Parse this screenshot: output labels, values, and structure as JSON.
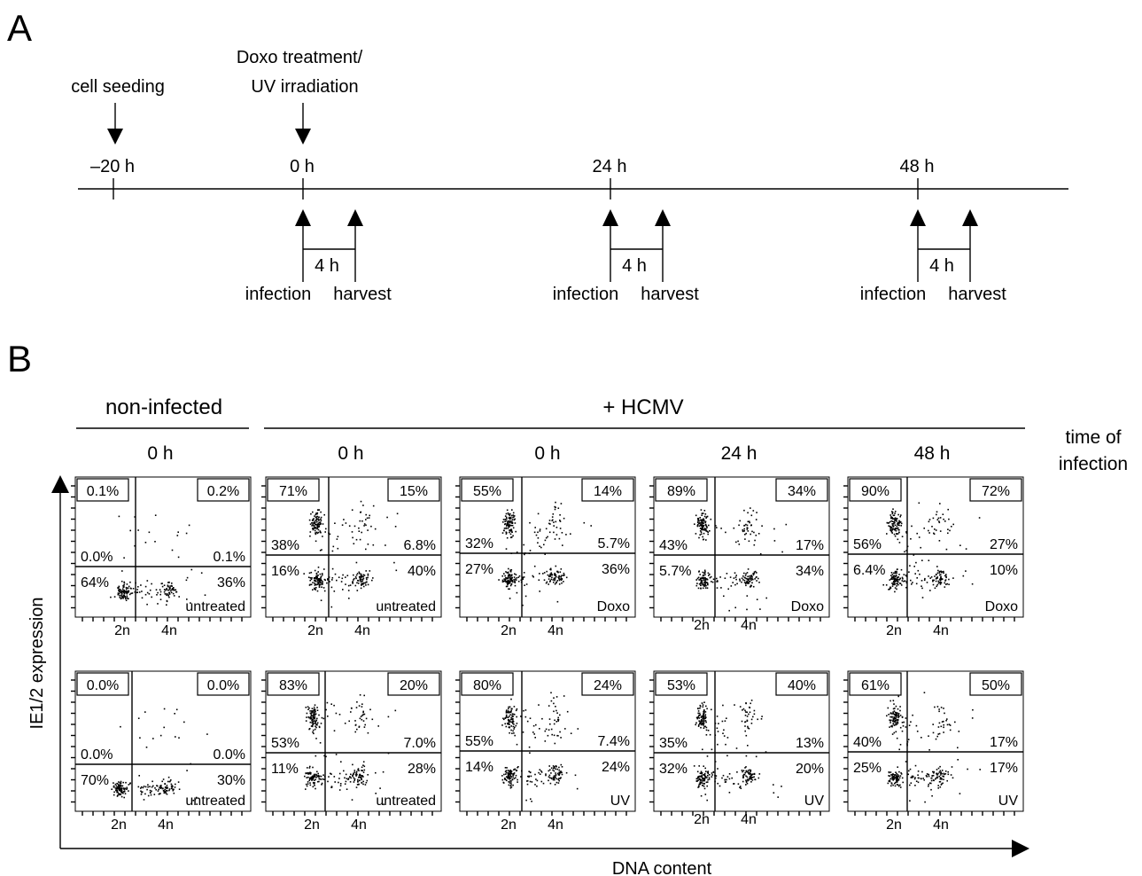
{
  "panel_a": {
    "letter": "A",
    "events_top": [
      {
        "label": "cell seeding"
      },
      {
        "label1": "Doxo treatment/",
        "label2": "UV irradiation"
      }
    ],
    "time_labels": [
      "–20 h",
      "0 h",
      "24 h",
      "48 h"
    ],
    "interval_label": "4 h",
    "infection_label": "infection",
    "harvest_label": "harvest"
  },
  "panel_b": {
    "letter": "B",
    "group_noninfected": "non-infected",
    "group_hcmv": "+ HCMV",
    "column_times": [
      "0 h",
      "0 h",
      "0 h",
      "24 h",
      "48 h"
    ],
    "time_of_infection_1": "time of",
    "time_of_infection_2": "infection",
    "y_axis_label": "IE1/2 expression",
    "x_axis_label": "DNA content",
    "x_tick_labels": [
      "2n",
      "4n"
    ],
    "rows": [
      [
        {
          "ul": "0.1%",
          "ur": "0.2%",
          "ml": "0.0%",
          "mr": "0.1%",
          "ll": "64%",
          "lr": "36%",
          "treat": "untreated"
        },
        {
          "ul": "71%",
          "ur": "15%",
          "ml": "38%",
          "mr": "6.8%",
          "ll": "16%",
          "lr": "40%",
          "treat": "untreated"
        },
        {
          "ul": "55%",
          "ur": "14%",
          "ml": "32%",
          "mr": "5.7%",
          "ll": "27%",
          "lr": "36%",
          "treat": "Doxo"
        },
        {
          "ul": "89%",
          "ur": "34%",
          "ml": "43%",
          "mr": "17%",
          "ll": "5.7%",
          "lr": "34%",
          "treat": "Doxo"
        },
        {
          "ul": "90%",
          "ur": "72%",
          "ml": "56%",
          "mr": "27%",
          "ll": "6.4%",
          "lr": "10%",
          "treat": "Doxo"
        }
      ],
      [
        {
          "ul": "0.0%",
          "ur": "0.0%",
          "ml": "0.0%",
          "mr": "0.0%",
          "ll": "70%",
          "lr": "30%",
          "treat": "untreated"
        },
        {
          "ul": "83%",
          "ur": "20%",
          "ml": "53%",
          "mr": "7.0%",
          "ll": "11%",
          "lr": "28%",
          "treat": "untreated"
        },
        {
          "ul": "80%",
          "ur": "24%",
          "ml": "55%",
          "mr": "7.4%",
          "ll": "14%",
          "lr": "24%",
          "treat": "UV"
        },
        {
          "ul": "53%",
          "ur": "40%",
          "ml": "35%",
          "mr": "13%",
          "ll": "32%",
          "lr": "20%",
          "treat": "UV"
        },
        {
          "ul": "61%",
          "ur": "50%",
          "ml": "40%",
          "mr": "17%",
          "ll": "25%",
          "lr": "17%",
          "treat": "UV"
        }
      ]
    ]
  }
}
